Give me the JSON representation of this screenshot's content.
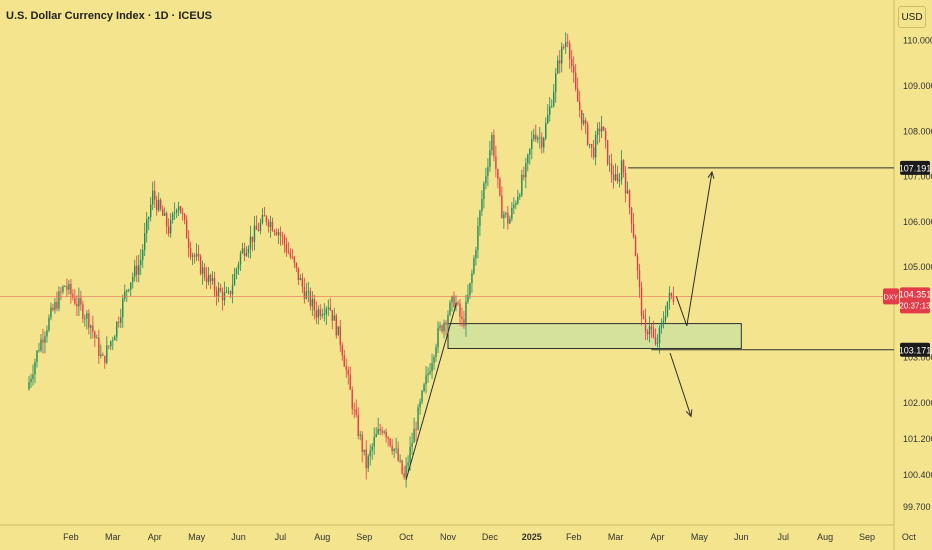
{
  "window": {
    "title": "U.S. Dollar Currency Index · 1D · ICEUS",
    "currency": "USD"
  },
  "colors": {
    "background": "#f3e48d",
    "up": "#1e8a5c",
    "down": "#e23b4a",
    "price_line": "#e86a5c",
    "zone_fill": "#cfe29f",
    "zone_stroke": "#2e2e2e",
    "drawing": "#2e2e2e"
  },
  "chart_data": {
    "type": "candlestick",
    "title": "U.S. Dollar Currency Index · 1D · ICEUS",
    "symbol": "DXY",
    "timeframe": "1D",
    "ylim": [
      99.3,
      110.9
    ],
    "y_ticks": [
      "110.000",
      "109.000",
      "108.000",
      "107.000",
      "106.000",
      "105.000",
      "103.000",
      "102.000",
      "101.200",
      "100.400",
      "99.700"
    ],
    "y_tick_values": [
      110.0,
      109.0,
      108.0,
      107.0,
      106.0,
      105.0,
      103.0,
      102.0,
      101.2,
      100.4,
      99.7
    ],
    "x_ticks": [
      "Feb",
      "Mar",
      "Apr",
      "May",
      "Jun",
      "Jul",
      "Aug",
      "Sep",
      "Oct",
      "Nov",
      "Dec",
      "2025",
      "Feb",
      "Mar",
      "Apr",
      "May",
      "Jun",
      "Jul",
      "Aug",
      "Sep",
      "Oct"
    ],
    "x_tick_months": [
      1,
      2,
      3,
      4,
      5,
      6,
      7,
      8,
      9,
      10,
      11,
      12,
      13,
      14,
      15,
      16,
      17,
      18,
      19,
      20,
      21
    ],
    "price_path": [
      [
        0.0,
        102.3
      ],
      [
        0.3,
        103.3
      ],
      [
        0.6,
        104.0
      ],
      [
        0.9,
        104.6
      ],
      [
        1.2,
        104.2
      ],
      [
        1.5,
        103.8
      ],
      [
        1.8,
        102.9
      ],
      [
        2.1,
        103.6
      ],
      [
        2.4,
        104.6
      ],
      [
        2.7,
        105.1
      ],
      [
        3.0,
        106.6
      ],
      [
        3.2,
        106.2
      ],
      [
        3.4,
        105.8
      ],
      [
        3.6,
        106.5
      ],
      [
        3.9,
        105.4
      ],
      [
        4.2,
        104.9
      ],
      [
        4.5,
        104.5
      ],
      [
        4.8,
        104.3
      ],
      [
        5.1,
        105.3
      ],
      [
        5.4,
        105.7
      ],
      [
        5.7,
        106.1
      ],
      [
        6.0,
        105.8
      ],
      [
        6.3,
        105.2
      ],
      [
        6.6,
        104.5
      ],
      [
        6.9,
        104.0
      ],
      [
        7.2,
        104.2
      ],
      [
        7.5,
        103.3
      ],
      [
        7.8,
        101.8
      ],
      [
        8.1,
        100.6
      ],
      [
        8.3,
        101.2
      ],
      [
        8.5,
        101.5
      ],
      [
        8.8,
        100.9
      ],
      [
        9.0,
        100.3
      ],
      [
        9.2,
        101.2
      ],
      [
        9.5,
        102.4
      ],
      [
        9.8,
        103.5
      ],
      [
        10.2,
        104.3
      ],
      [
        10.4,
        103.7
      ],
      [
        10.6,
        104.7
      ],
      [
        10.9,
        106.8
      ],
      [
        11.1,
        107.9
      ],
      [
        11.3,
        106.3
      ],
      [
        11.5,
        106.0
      ],
      [
        11.7,
        106.6
      ],
      [
        11.9,
        107.1
      ],
      [
        12.1,
        108.0
      ],
      [
        12.3,
        107.8
      ],
      [
        12.5,
        108.6
      ],
      [
        12.7,
        109.6
      ],
      [
        12.9,
        110.1
      ],
      [
        13.1,
        108.8
      ],
      [
        13.3,
        108.1
      ],
      [
        13.5,
        107.5
      ],
      [
        13.7,
        108.2
      ],
      [
        13.9,
        107.2
      ],
      [
        14.1,
        106.8
      ],
      [
        14.2,
        107.4
      ],
      [
        14.3,
        106.7
      ],
      [
        14.45,
        106.0
      ],
      [
        14.6,
        104.6
      ],
      [
        14.75,
        103.4
      ],
      [
        14.85,
        103.8
      ],
      [
        15.0,
        103.2
      ],
      [
        15.15,
        103.7
      ],
      [
        15.3,
        104.3
      ],
      [
        15.45,
        104.35
      ]
    ],
    "current_price": {
      "label": "DXY",
      "value": 104.351,
      "text": "104.351",
      "countdown": "20:37:13"
    },
    "levels": [
      {
        "name": "target-level",
        "value": 107.191,
        "text": "107.191"
      },
      {
        "name": "support-level",
        "value": 103.171,
        "text": "103.171"
      }
    ],
    "zone": {
      "type": "demand-zone",
      "low": 103.2,
      "high": 103.75,
      "from_month": 10.0,
      "to_month": 17.0
    },
    "annotations": [
      {
        "type": "arrow",
        "name": "bullish-projection",
        "points": [
          [
            15.7,
            103.7
          ],
          [
            16.3,
            107.1
          ]
        ]
      },
      {
        "type": "arrow",
        "name": "bearish-projection",
        "points": [
          [
            15.3,
            103.1
          ],
          [
            15.8,
            101.7
          ]
        ]
      },
      {
        "type": "line",
        "name": "rally-trendline",
        "points": [
          [
            9.0,
            100.3
          ],
          [
            10.2,
            104.2
          ]
        ]
      }
    ]
  }
}
